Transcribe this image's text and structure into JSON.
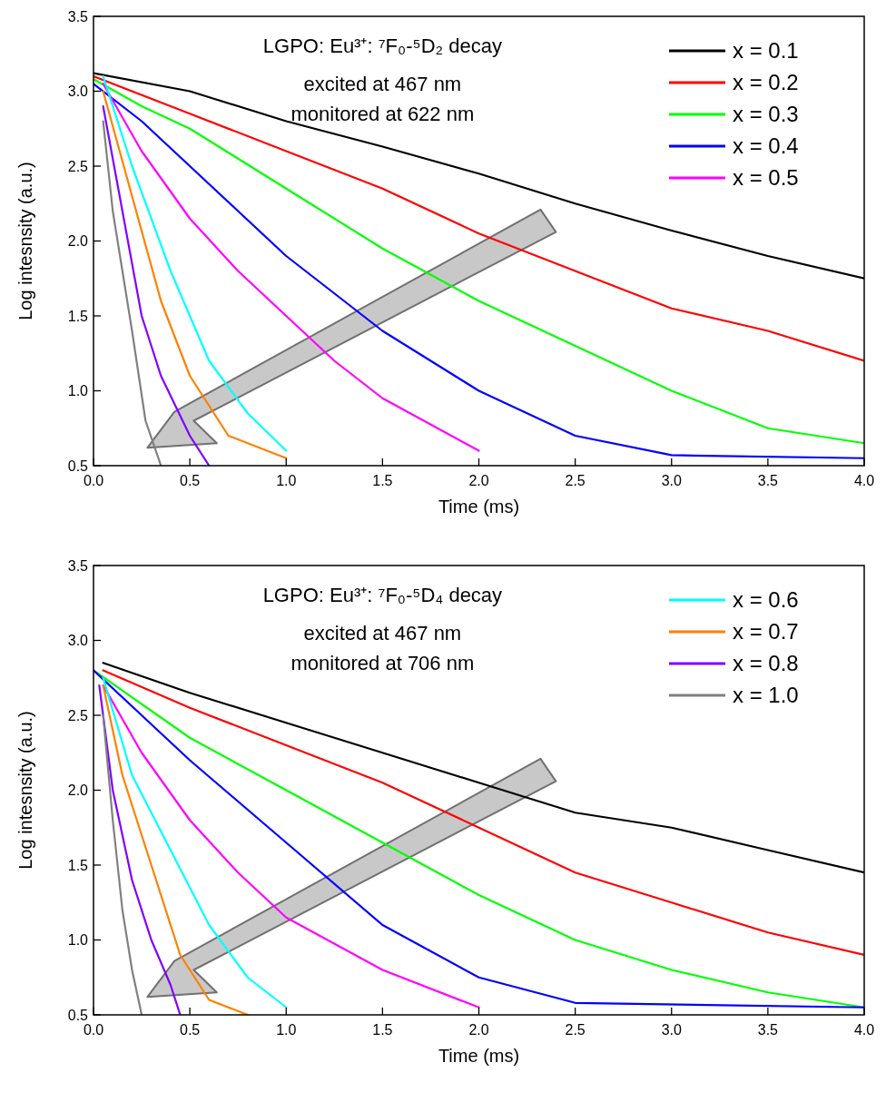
{
  "chart_data": [
    {
      "type": "line",
      "title": "LGPO: Eu³⁺: ⁷F₀-⁵D₂ decay",
      "annotations": [
        "excited at 467 nm",
        "monitored at 622 nm"
      ],
      "xlabel": "Time (ms)",
      "ylabel": "Log intesnsity (a.u.)",
      "xlim": [
        0,
        4
      ],
      "ylim": [
        0.5,
        3.5
      ],
      "xticks": [
        {
          "value": 0,
          "label": "0.0"
        },
        {
          "value": 0.5,
          "label": "0.5"
        },
        {
          "value": 1,
          "label": "1.0"
        },
        {
          "value": 1.5,
          "label": "1.5"
        },
        {
          "value": 2,
          "label": "2.0"
        },
        {
          "value": 2.5,
          "label": "2.5"
        },
        {
          "value": 3,
          "label": "3.0"
        },
        {
          "value": 3.5,
          "label": "3.5"
        },
        {
          "value": 4,
          "label": "4.0"
        }
      ],
      "yticks": [
        0.5,
        {
          "value": 1,
          "label": "1.0"
        },
        1.5,
        {
          "value": 2,
          "label": "2.0"
        },
        2.5,
        {
          "value": 3,
          "label": "3.0"
        },
        3.5
      ],
      "legend": "top right",
      "grid": false,
      "series": [
        {
          "name": "x = 0.1",
          "color": "#000000",
          "x": [
            0,
            0.5,
            1,
            1.5,
            2,
            2.5,
            3,
            3.5,
            4
          ],
          "values": [
            3.12,
            3.0,
            2.8,
            2.63,
            2.45,
            2.25,
            2.07,
            1.9,
            1.75
          ]
        },
        {
          "name": "x = 0.2",
          "color": "#ff0000",
          "x": [
            0,
            0.5,
            1,
            1.5,
            2,
            2.5,
            3,
            3.5,
            4
          ],
          "values": [
            3.1,
            2.85,
            2.6,
            2.35,
            2.05,
            1.8,
            1.55,
            1.4,
            1.2
          ]
        },
        {
          "name": "x = 0.3",
          "color": "#00ff00",
          "x": [
            0,
            0.25,
            0.5,
            1,
            1.5,
            2,
            2.5,
            3,
            3.5,
            4
          ],
          "values": [
            3.08,
            2.9,
            2.75,
            2.35,
            1.95,
            1.6,
            1.3,
            1.0,
            0.75,
            0.65
          ]
        },
        {
          "name": "x = 0.4",
          "color": "#0000ff",
          "x": [
            0,
            0.25,
            0.5,
            0.75,
            1,
            1.5,
            2,
            2.5,
            3,
            4
          ],
          "values": [
            3.05,
            2.8,
            2.5,
            2.2,
            1.9,
            1.4,
            1.0,
            0.7,
            0.57,
            0.55
          ]
        },
        {
          "name": "x = 0.5",
          "color": "#ff00ff",
          "x": [
            0.05,
            0.25,
            0.5,
            0.75,
            1,
            1.25,
            1.5,
            2
          ],
          "values": [
            3.05,
            2.6,
            2.15,
            1.8,
            1.5,
            1.2,
            0.95,
            0.6
          ]
        },
        {
          "color": "#00ffff",
          "x": [
            0.05,
            0.2,
            0.4,
            0.6,
            0.8,
            1
          ],
          "values": [
            3.1,
            2.5,
            1.8,
            1.2,
            0.85,
            0.6
          ]
        },
        {
          "color": "#ff8000",
          "x": [
            0.05,
            0.2,
            0.35,
            0.5,
            0.7,
            1
          ],
          "values": [
            3.0,
            2.3,
            1.6,
            1.1,
            0.7,
            0.55
          ]
        },
        {
          "color": "#8000ff",
          "x": [
            0.05,
            0.15,
            0.25,
            0.35,
            0.5,
            0.6
          ],
          "values": [
            2.9,
            2.2,
            1.5,
            1.1,
            0.7,
            0.5
          ]
        },
        {
          "color": "#808080",
          "x": [
            0.05,
            0.1,
            0.2,
            0.27,
            0.35
          ],
          "values": [
            2.8,
            2.2,
            1.4,
            0.8,
            0.5
          ]
        }
      ]
    },
    {
      "type": "line",
      "title": "LGPO: Eu³⁺: ⁷F₀-⁵D₄ decay",
      "annotations": [
        "excited at 467 nm",
        "monitored at 706 nm"
      ],
      "xlabel": "Time (ms)",
      "ylabel": "Log intesnsity (a.u.)",
      "xlim": [
        0,
        4
      ],
      "ylim": [
        0.5,
        3.5
      ],
      "xticks": [
        {
          "value": 0,
          "label": "0.0"
        },
        {
          "value": 0.5,
          "label": "0.5"
        },
        {
          "value": 1,
          "label": "1.0"
        },
        {
          "value": 1.5,
          "label": "1.5"
        },
        {
          "value": 2,
          "label": "2.0"
        },
        {
          "value": 2.5,
          "label": "2.5"
        },
        {
          "value": 3,
          "label": "3.0"
        },
        {
          "value": 3.5,
          "label": "3.5"
        },
        {
          "value": 4,
          "label": "4.0"
        }
      ],
      "yticks": [
        0.5,
        {
          "value": 1,
          "label": "1.0"
        },
        1.5,
        {
          "value": 2,
          "label": "2.0"
        },
        2.5,
        {
          "value": 3,
          "label": "3.0"
        },
        3.5
      ],
      "legend": "top right",
      "grid": false,
      "series": [
        {
          "color": "#000000",
          "x": [
            0.05,
            0.5,
            1,
            1.5,
            2,
            2.5,
            3,
            3.5,
            4
          ],
          "values": [
            2.85,
            2.65,
            2.45,
            2.25,
            2.05,
            1.85,
            1.75,
            1.6,
            1.45
          ]
        },
        {
          "color": "#ff0000",
          "x": [
            0.05,
            0.5,
            1,
            1.5,
            2,
            2.5,
            3,
            3.5,
            4
          ],
          "values": [
            2.8,
            2.55,
            2.3,
            2.05,
            1.75,
            1.45,
            1.25,
            1.05,
            0.9
          ]
        },
        {
          "color": "#00ff00",
          "x": [
            0,
            0.5,
            1,
            1.5,
            2,
            2.5,
            3,
            3.5,
            4
          ],
          "values": [
            2.8,
            2.35,
            2.0,
            1.65,
            1.3,
            1.0,
            0.8,
            0.65,
            0.55
          ]
        },
        {
          "color": "#0000ff",
          "x": [
            0,
            0.25,
            0.5,
            1,
            1.5,
            2,
            2.5,
            4
          ],
          "values": [
            2.8,
            2.5,
            2.2,
            1.65,
            1.1,
            0.75,
            0.58,
            0.55
          ]
        },
        {
          "color": "#ff00ff",
          "x": [
            0.05,
            0.25,
            0.5,
            0.75,
            1,
            1.5,
            2
          ],
          "values": [
            2.7,
            2.25,
            1.8,
            1.45,
            1.15,
            0.8,
            0.55
          ]
        },
        {
          "name": "x = 0.6",
          "color": "#00ffff",
          "x": [
            0.05,
            0.2,
            0.4,
            0.6,
            0.8,
            1
          ],
          "values": [
            2.75,
            2.1,
            1.6,
            1.1,
            0.75,
            0.55
          ]
        },
        {
          "name": "x = 0.7",
          "color": "#ff8000",
          "x": [
            0.05,
            0.15,
            0.3,
            0.45,
            0.6,
            0.8
          ],
          "values": [
            2.7,
            2.1,
            1.5,
            0.9,
            0.6,
            0.5
          ]
        },
        {
          "name": "x = 0.8",
          "color": "#8000ff",
          "x": [
            0.03,
            0.1,
            0.2,
            0.3,
            0.4,
            0.45
          ],
          "values": [
            2.7,
            2.0,
            1.4,
            1.0,
            0.7,
            0.5
          ]
        },
        {
          "name": "x = 1.0",
          "color": "#808080",
          "x": [
            0.05,
            0.1,
            0.15,
            0.2,
            0.25
          ],
          "values": [
            2.5,
            1.8,
            1.2,
            0.8,
            0.5
          ]
        }
      ]
    }
  ]
}
